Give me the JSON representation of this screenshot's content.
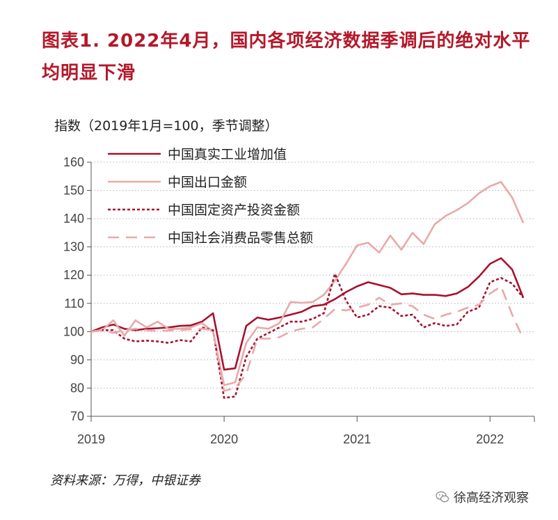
{
  "header": {
    "title": "图表1. 2022年4月，国内各项经济数据季调后的绝对水平均明显下滑"
  },
  "footer": {
    "source": "资料来源：万得，中银证券",
    "watermark": "徐高经济观察"
  },
  "chart_data": {
    "type": "line",
    "title": "图表1. 2022年4月，国内各项经济数据季调后的绝对水平均明显下滑",
    "ylabel": "指数（2019年1月=100，季节调整）",
    "xlabel": "",
    "ylim": [
      70,
      160
    ],
    "yticks": [
      70,
      80,
      90,
      100,
      110,
      120,
      130,
      140,
      150,
      160
    ],
    "xlim": [
      "2019-01",
      "2022-05"
    ],
    "xticks": [
      "2019",
      "2020",
      "2021",
      "2022"
    ],
    "grid": "horizontal dotted",
    "legend_position": "top-left",
    "x": [
      "2019-01",
      "2019-02",
      "2019-03",
      "2019-04",
      "2019-05",
      "2019-06",
      "2019-07",
      "2019-08",
      "2019-09",
      "2019-10",
      "2019-11",
      "2019-12",
      "2020-01",
      "2020-02",
      "2020-03",
      "2020-04",
      "2020-05",
      "2020-06",
      "2020-07",
      "2020-08",
      "2020-09",
      "2020-10",
      "2020-11",
      "2020-12",
      "2021-01",
      "2021-02",
      "2021-03",
      "2021-04",
      "2021-05",
      "2021-06",
      "2021-07",
      "2021-08",
      "2021-09",
      "2021-10",
      "2021-11",
      "2021-12",
      "2022-01",
      "2022-02",
      "2022-03",
      "2022-04"
    ],
    "series": [
      {
        "name": "中国真实工业增加值",
        "color": "#a8102f",
        "style": "solid",
        "values": [
          100,
          101.5,
          102.5,
          101,
          100.5,
          101,
          101.2,
          101.5,
          102,
          102.2,
          103.5,
          106.5,
          86.5,
          87,
          102,
          105,
          104.2,
          105,
          106,
          107,
          109,
          109.5,
          111.5,
          114,
          116,
          117.5,
          116.5,
          115.5,
          113.2,
          113.5,
          113,
          113,
          112.6,
          113.5,
          115.8,
          119.5,
          124,
          126,
          122,
          112
        ]
      },
      {
        "name": "中国出口金额",
        "color": "#e8a9a9",
        "style": "solid",
        "values": [
          100,
          100.5,
          104,
          98.5,
          104,
          101.5,
          103.5,
          101,
          101,
          101.5,
          103,
          100,
          81,
          82,
          96,
          101.5,
          101,
          103,
          110.5,
          110.2,
          110.5,
          113,
          118,
          124,
          130.5,
          131.5,
          128,
          134,
          129,
          135,
          131,
          138,
          141,
          143,
          145.5,
          149,
          151.5,
          153,
          147.5,
          138.5
        ]
      },
      {
        "name": "中国固定资产投资金额",
        "color": "#a8102f",
        "style": "dotted",
        "values": [
          100,
          100.5,
          100.5,
          97.5,
          96.5,
          96.8,
          96.5,
          96,
          97,
          96.5,
          101.5,
          100.5,
          76.5,
          77,
          91,
          97.5,
          99.5,
          101.5,
          103.5,
          103.5,
          104.5,
          106.5,
          120.5,
          111,
          105,
          106,
          109,
          108.5,
          105.5,
          106,
          101.5,
          103,
          102,
          102.5,
          107,
          108.5,
          117.5,
          119,
          117,
          112
        ]
      },
      {
        "name": "中国社会消费品零售总额",
        "color": "#e8a9a9",
        "style": "dashed",
        "values": [
          100,
          100.5,
          99.5,
          100.5,
          101,
          100.5,
          100.2,
          100.4,
          100.5,
          100.8,
          101,
          100.5,
          79,
          80,
          85,
          97.5,
          97.5,
          98,
          100,
          101,
          101.5,
          104.5,
          108,
          107.5,
          108.5,
          109.5,
          112,
          109.5,
          110,
          109,
          106,
          104.5,
          106,
          107,
          108.5,
          109.5,
          113.5,
          116,
          106,
          97.5
        ]
      }
    ]
  }
}
